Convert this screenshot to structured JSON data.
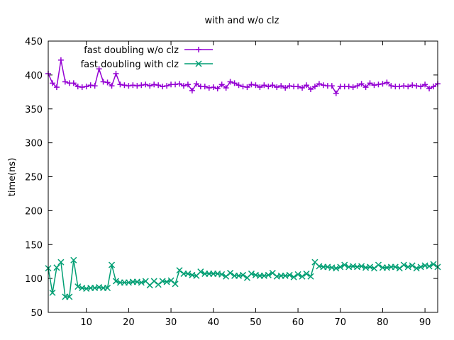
{
  "chart_data": {
    "type": "line",
    "title": "with and w/o clz",
    "xlabel": "",
    "ylabel": "time(ns)",
    "xlim": [
      1,
      93
    ],
    "ylim": [
      50,
      450
    ],
    "xticks": [
      10,
      20,
      30,
      40,
      50,
      60,
      70,
      80,
      90
    ],
    "yticks": [
      50,
      100,
      150,
      200,
      250,
      300,
      350,
      400,
      450
    ],
    "grid": false,
    "legend_position": "top-left",
    "x": [
      1,
      2,
      3,
      4,
      5,
      6,
      7,
      8,
      9,
      10,
      11,
      12,
      13,
      14,
      15,
      16,
      17,
      18,
      19,
      20,
      21,
      22,
      23,
      24,
      25,
      26,
      27,
      28,
      29,
      30,
      31,
      32,
      33,
      34,
      35,
      36,
      37,
      38,
      39,
      40,
      41,
      42,
      43,
      44,
      45,
      46,
      47,
      48,
      49,
      50,
      51,
      52,
      53,
      54,
      55,
      56,
      57,
      58,
      59,
      60,
      61,
      62,
      63,
      64,
      65,
      66,
      67,
      68,
      69,
      70,
      71,
      72,
      73,
      74,
      75,
      76,
      77,
      78,
      79,
      80,
      81,
      82,
      83,
      84,
      85,
      86,
      87,
      88,
      89,
      90,
      91,
      92,
      93
    ],
    "series": [
      {
        "name": "fast doubling w/o clz",
        "color": "#9400d3",
        "marker": "plus",
        "values": [
          402,
          388,
          382,
          422,
          390,
          388,
          388,
          383,
          382,
          383,
          385,
          384,
          409,
          390,
          389,
          384,
          402,
          386,
          385,
          384,
          385,
          384,
          385,
          386,
          384,
          386,
          385,
          383,
          384,
          386,
          386,
          387,
          384,
          386,
          377,
          387,
          383,
          383,
          381,
          382,
          380,
          386,
          381,
          390,
          388,
          385,
          383,
          382,
          386,
          385,
          382,
          385,
          383,
          385,
          382,
          384,
          381,
          384,
          383,
          383,
          381,
          385,
          379,
          383,
          387,
          385,
          384,
          384,
          373,
          383,
          383,
          383,
          382,
          384,
          387,
          382,
          388,
          385,
          386,
          387,
          389,
          384,
          383,
          383,
          384,
          383,
          385,
          384,
          383,
          386,
          380,
          383,
          387
        ]
      },
      {
        "name": "fast doubling with clz",
        "color": "#009e73",
        "marker": "cross",
        "values": [
          115,
          79,
          116,
          124,
          73,
          73,
          127,
          88,
          86,
          85,
          86,
          86,
          87,
          86,
          86,
          120,
          96,
          94,
          94,
          94,
          95,
          95,
          94,
          96,
          90,
          96,
          91,
          96,
          95,
          97,
          92,
          112,
          107,
          107,
          105,
          104,
          110,
          107,
          107,
          107,
          107,
          106,
          103,
          108,
          104,
          104,
          105,
          101,
          107,
          105,
          104,
          104,
          105,
          108,
          103,
          104,
          104,
          105,
          102,
          106,
          103,
          107,
          103,
          124,
          118,
          117,
          117,
          116,
          115,
          117,
          120,
          117,
          118,
          117,
          118,
          116,
          117,
          115,
          120,
          116,
          116,
          117,
          117,
          115,
          120,
          117,
          119,
          115,
          117,
          119,
          118,
          121,
          117
        ]
      }
    ]
  }
}
